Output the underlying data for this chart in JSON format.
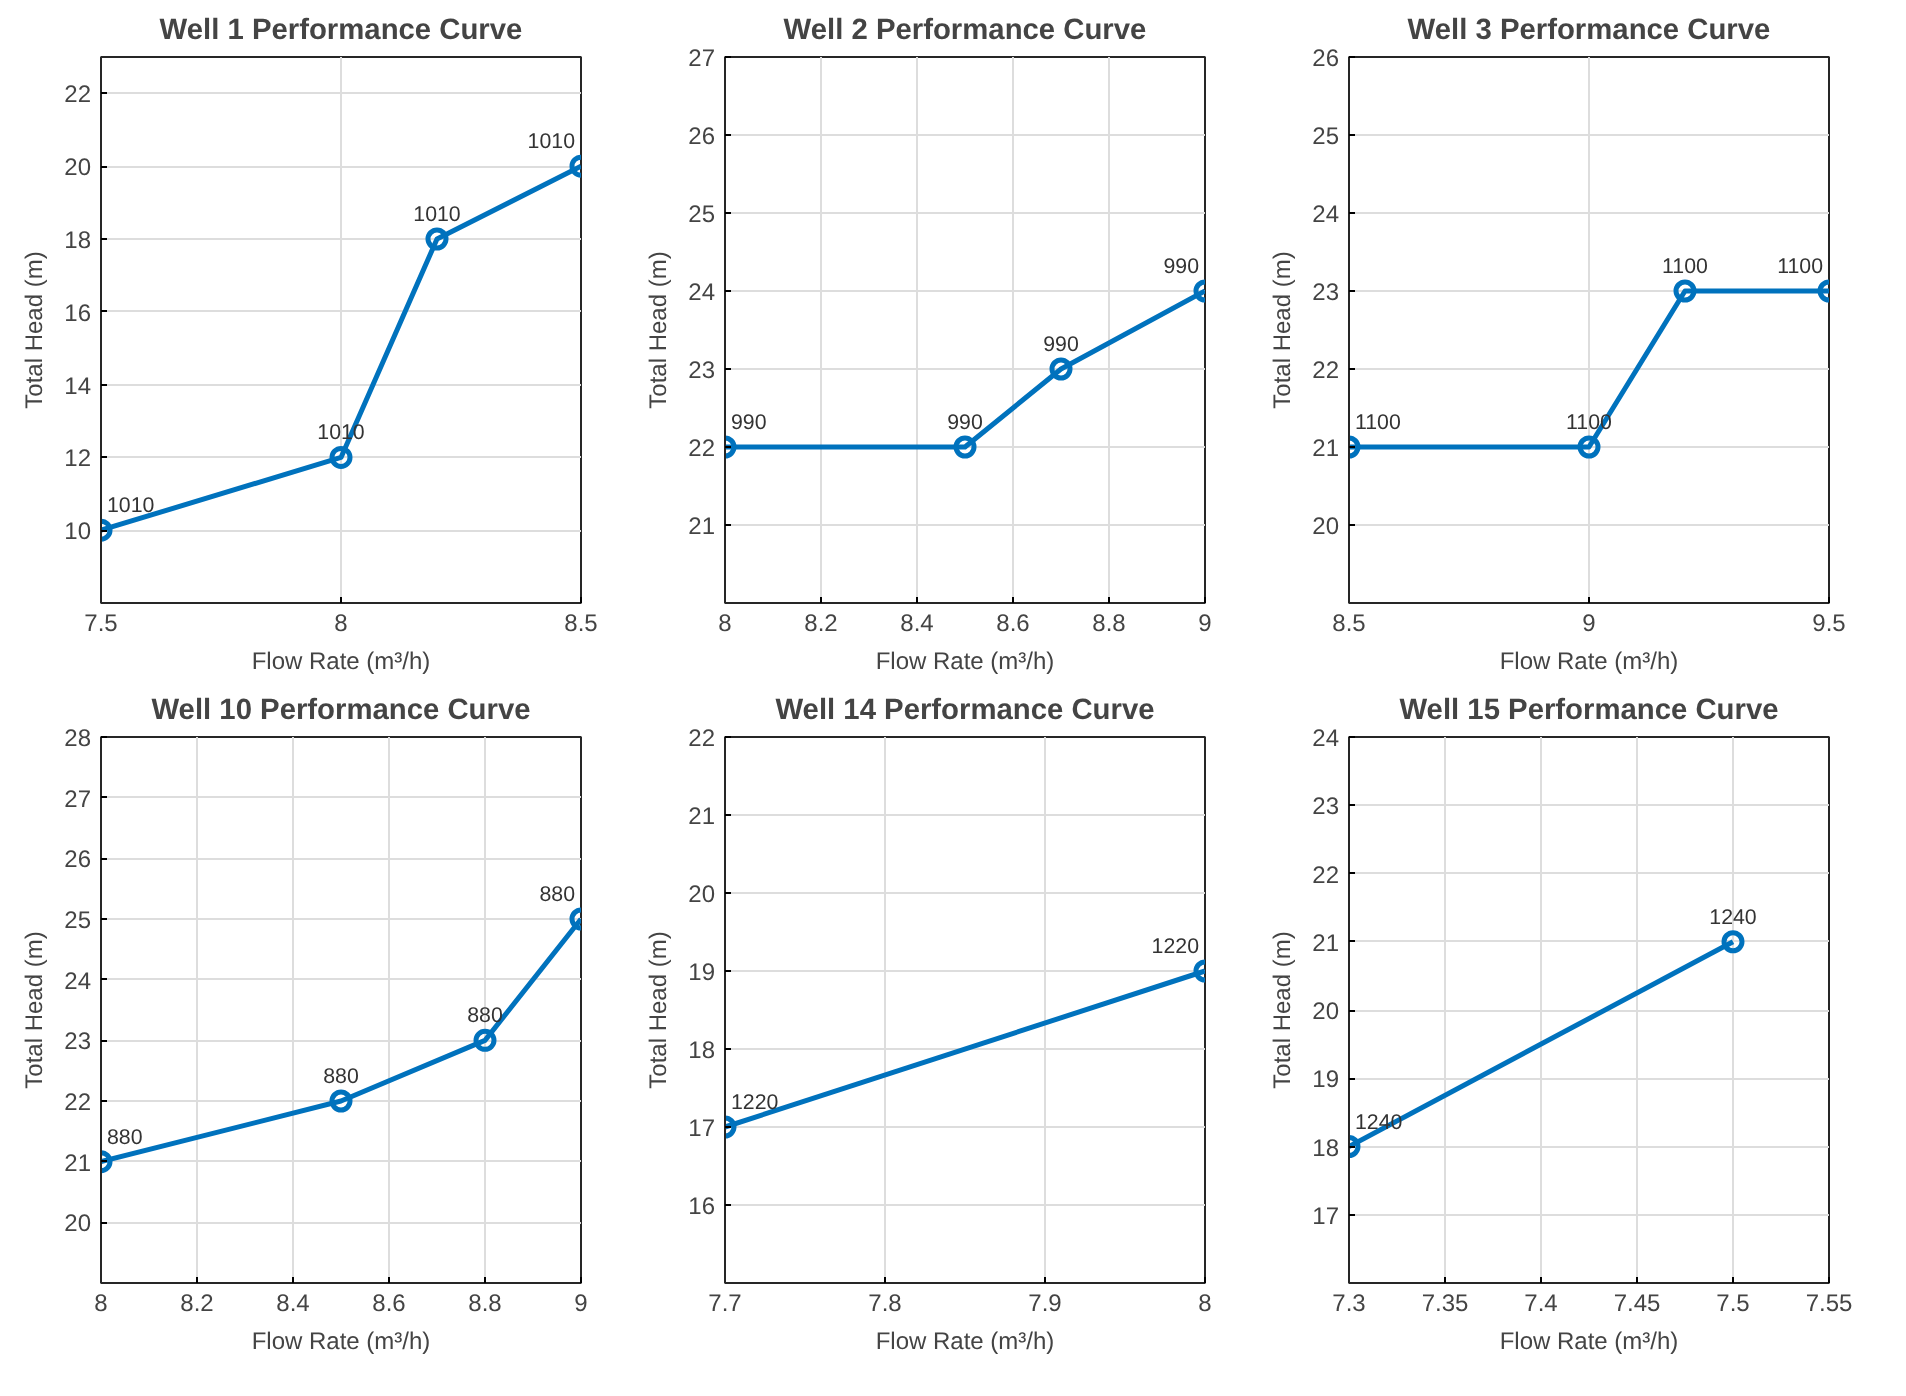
{
  "chart_data": [
    {
      "type": "line",
      "title": "Well 1 Performance Curve",
      "xlabel": "Flow Rate (m³/h)",
      "ylabel": "Total Head (m)",
      "x": [
        7.5,
        8,
        8.2,
        8.5
      ],
      "values": [
        10,
        12,
        18,
        20
      ],
      "color": "#0072bd",
      "xlim": [
        7.5,
        8.5
      ],
      "ylim": [
        8,
        23
      ],
      "xticks": [
        7.5,
        8,
        8.5
      ],
      "yticks": [
        10,
        12,
        14,
        16,
        18,
        20,
        22
      ],
      "grid": true,
      "marker": "circle",
      "line_style": "solid",
      "annotations": [
        {
          "text": "1010",
          "x": 7.5,
          "y": 10
        },
        {
          "text": "1010",
          "x": 8,
          "y": 12
        },
        {
          "text": "1010",
          "x": 8.2,
          "y": 18
        },
        {
          "text": "1010",
          "x": 8.5,
          "y": 20
        }
      ]
    },
    {
      "type": "line",
      "title": "Well 2 Performance Curve",
      "xlabel": "Flow Rate (m³/h)",
      "ylabel": "Total Head (m)",
      "x": [
        8,
        8.5,
        8.7,
        9
      ],
      "values": [
        22,
        22,
        23,
        24
      ],
      "color": "#0072bd",
      "xlim": [
        8,
        9
      ],
      "ylim": [
        20,
        27
      ],
      "xticks": [
        8,
        8.2,
        8.4,
        8.6,
        8.8,
        9
      ],
      "yticks": [
        21,
        22,
        23,
        24,
        25,
        26,
        27
      ],
      "grid": true,
      "marker": "circle",
      "line_style": "solid",
      "annotations": [
        {
          "text": "990",
          "x": 8,
          "y": 22
        },
        {
          "text": "990",
          "x": 8.5,
          "y": 22
        },
        {
          "text": "990",
          "x": 8.7,
          "y": 23
        },
        {
          "text": "990",
          "x": 9,
          "y": 24
        }
      ]
    },
    {
      "type": "line",
      "title": "Well 3 Performance Curve",
      "xlabel": "Flow Rate (m³/h)",
      "ylabel": "Total Head (m)",
      "x": [
        8.5,
        9,
        9.2,
        9.5
      ],
      "values": [
        21,
        21,
        23,
        23
      ],
      "color": "#0072bd",
      "xlim": [
        8.5,
        9.5
      ],
      "ylim": [
        19,
        26
      ],
      "xticks": [
        8.5,
        9,
        9.5
      ],
      "yticks": [
        20,
        21,
        22,
        23,
        24,
        25,
        26
      ],
      "grid": true,
      "marker": "circle",
      "line_style": "solid",
      "annotations": [
        {
          "text": "1100",
          "x": 8.5,
          "y": 21
        },
        {
          "text": "1100",
          "x": 9,
          "y": 21
        },
        {
          "text": "1100",
          "x": 9.2,
          "y": 23
        },
        {
          "text": "1100",
          "x": 9.5,
          "y": 23
        }
      ]
    },
    {
      "type": "line",
      "title": "Well 10 Performance Curve",
      "xlabel": "Flow Rate (m³/h)",
      "ylabel": "Total Head (m)",
      "x": [
        8,
        8.5,
        8.8,
        9
      ],
      "values": [
        21,
        22,
        23,
        25
      ],
      "color": "#0072bd",
      "xlim": [
        8,
        9
      ],
      "ylim": [
        19,
        28
      ],
      "xticks": [
        8,
        8.2,
        8.4,
        8.6,
        8.8,
        9
      ],
      "yticks": [
        20,
        21,
        22,
        23,
        24,
        25,
        26,
        27,
        28
      ],
      "grid": true,
      "marker": "circle",
      "line_style": "solid",
      "annotations": [
        {
          "text": "880",
          "x": 8,
          "y": 21
        },
        {
          "text": "880",
          "x": 8.5,
          "y": 22
        },
        {
          "text": "880",
          "x": 8.8,
          "y": 23
        },
        {
          "text": "880",
          "x": 9,
          "y": 25
        }
      ]
    },
    {
      "type": "line",
      "title": "Well 14 Performance Curve",
      "xlabel": "Flow Rate (m³/h)",
      "ylabel": "Total Head (m)",
      "x": [
        7.7,
        8
      ],
      "values": [
        17,
        19
      ],
      "color": "#0072bd",
      "xlim": [
        7.7,
        8
      ],
      "ylim": [
        15,
        22
      ],
      "xticks": [
        7.7,
        7.8,
        7.9,
        8
      ],
      "yticks": [
        16,
        17,
        18,
        19,
        20,
        21,
        22
      ],
      "grid": true,
      "marker": "circle",
      "line_style": "solid",
      "annotations": [
        {
          "text": "1220",
          "x": 7.7,
          "y": 17
        },
        {
          "text": "1220",
          "x": 8,
          "y": 19
        }
      ]
    },
    {
      "type": "line",
      "title": "Well 15 Performance Curve",
      "xlabel": "Flow Rate (m³/h)",
      "ylabel": "Total Head (m)",
      "x": [
        7.3,
        7.5
      ],
      "values": [
        18,
        21
      ],
      "color": "#0072bd",
      "xlim": [
        7.3,
        7.55
      ],
      "ylim": [
        16,
        24
      ],
      "xticks": [
        7.3,
        7.35,
        7.4,
        7.45,
        7.5,
        7.55
      ],
      "yticks": [
        17,
        18,
        19,
        20,
        21,
        22,
        23,
        24
      ],
      "grid": true,
      "marker": "circle",
      "line_style": "solid",
      "annotations": [
        {
          "text": "1240",
          "x": 7.3,
          "y": 18
        },
        {
          "text": "1240",
          "x": 7.5,
          "y": 21
        }
      ]
    }
  ]
}
